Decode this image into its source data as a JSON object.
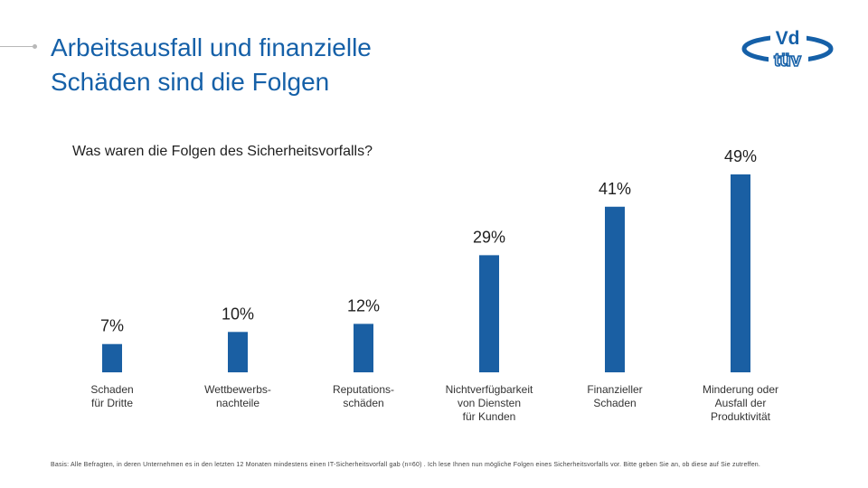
{
  "slide": {
    "title_line1": "Arbeitsausfall und finanzielle",
    "title_line2": "Schäden sind die Folgen",
    "footnote": "Basis: Alle Befragten, in deren Unternehmen es in den letzten 12 Monaten mindestens einen IT-Sicherheitsvorfall gab (n=60) . Ich lese Ihnen nun mögliche Folgen eines Sicherheitsvorfalls vor. Bitte geben Sie an, ob diese auf Sie zutreffen.",
    "logo_top": "Vd",
    "logo_bottom": "tüv"
  },
  "colors": {
    "title": "#1560a8",
    "bar": "#1a5fa3",
    "text": "#1f1f1f"
  },
  "chart_data": {
    "type": "bar",
    "title": "Was waren die Folgen des Sicherheitsvorfalls?",
    "categories": [
      [
        "Schaden",
        "für Dritte"
      ],
      [
        "Wettbewerbs-",
        "nachteile"
      ],
      [
        "Reputations-",
        "schäden"
      ],
      [
        "Nichtverfügbarkeit",
        "von Diensten",
        "für Kunden"
      ],
      [
        "Finanzieller",
        "Schaden"
      ],
      [
        "Minderung oder",
        "Ausfall der",
        "Produktivität"
      ]
    ],
    "values": [
      7,
      10,
      12,
      29,
      41,
      49
    ],
    "value_labels": [
      "7%",
      "10%",
      "12%",
      "29%",
      "41%",
      "49%"
    ],
    "unit": "%",
    "ylim": [
      0,
      49
    ],
    "legend": "none",
    "grid": false
  }
}
